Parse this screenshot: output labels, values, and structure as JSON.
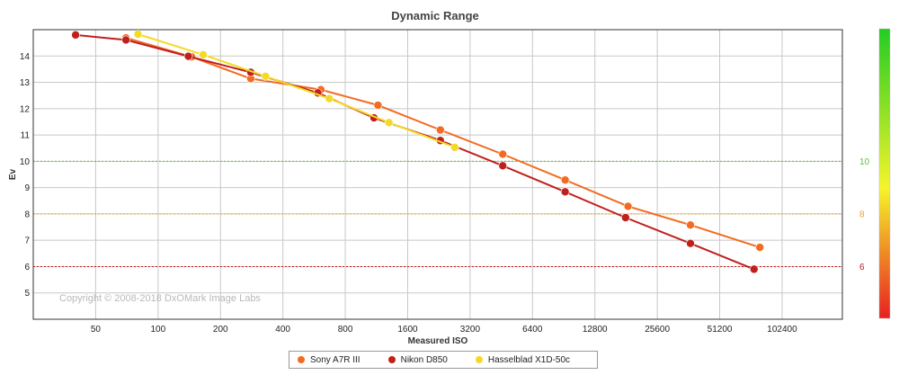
{
  "chart_data": {
    "type": "line",
    "title": "Dynamic Range",
    "xlabel": "Measured ISO",
    "ylabel": "Ev",
    "x_scale": "log2",
    "x_ticks": [
      50,
      100,
      200,
      400,
      800,
      1600,
      3200,
      6400,
      12800,
      25600,
      51200,
      102400
    ],
    "xlim": [
      25,
      200000
    ],
    "y_ticks": [
      5,
      6,
      7,
      8,
      9,
      10,
      11,
      12,
      13,
      14
    ],
    "ylim": [
      4,
      15
    ],
    "grid": true,
    "legend_position": "bottom",
    "reference_lines": [
      {
        "value": 10,
        "label": "10",
        "color": "#55c23a"
      },
      {
        "value": 8,
        "label": "8",
        "color": "#f0a020"
      },
      {
        "value": 6,
        "label": "6",
        "color": "#cc1111"
      }
    ],
    "series": [
      {
        "name": "Sony A7R III",
        "color": "#f26b21",
        "points": [
          [
            70,
            14.69
          ],
          [
            145,
            13.97
          ],
          [
            280,
            13.14
          ],
          [
            610,
            12.72
          ],
          [
            1150,
            12.13
          ],
          [
            2300,
            11.19
          ],
          [
            4600,
            10.27
          ],
          [
            9200,
            9.29
          ],
          [
            18500,
            8.29
          ],
          [
            37000,
            7.58
          ],
          [
            80000,
            6.73
          ]
        ]
      },
      {
        "name": "Nikon D850",
        "color": "#c0201c",
        "points": [
          [
            40,
            14.8
          ],
          [
            70,
            14.61
          ],
          [
            140,
            13.99
          ],
          [
            280,
            13.38
          ],
          [
            590,
            12.6
          ],
          [
            1100,
            11.65
          ],
          [
            2300,
            10.79
          ],
          [
            4600,
            9.83
          ],
          [
            9200,
            8.84
          ],
          [
            18000,
            7.86
          ],
          [
            37000,
            6.88
          ],
          [
            75000,
            5.9
          ]
        ]
      },
      {
        "name": "Hasselblad X1D-50c",
        "color": "#f4da26",
        "points": [
          [
            80,
            14.83
          ],
          [
            165,
            14.05
          ],
          [
            330,
            13.23
          ],
          [
            670,
            12.38
          ],
          [
            1300,
            11.47
          ],
          [
            2700,
            10.53
          ]
        ]
      }
    ]
  },
  "copyright": "Copyright © 2008-2018 DxOMark Image Labs",
  "colorbar": {
    "top_color": "#22cc22",
    "mid_color": "#f5f52a",
    "bottom_color": "#e82020"
  }
}
